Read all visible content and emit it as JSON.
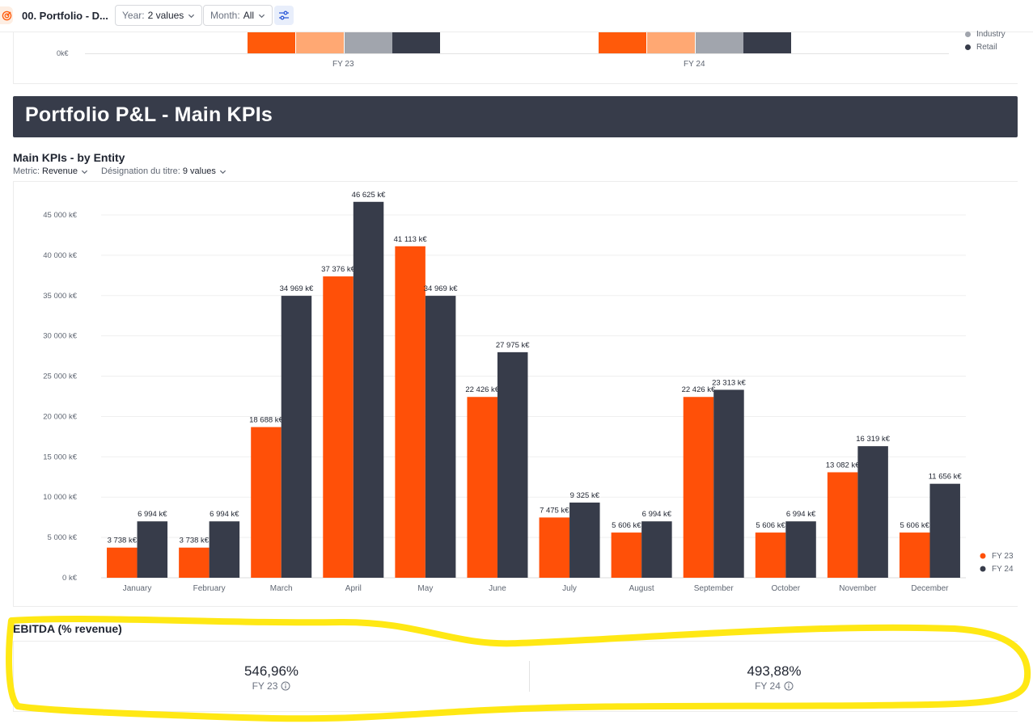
{
  "topbar": {
    "page_name": "00. Portfolio - D...",
    "filters": [
      {
        "label": "Year:",
        "value": "2 values"
      },
      {
        "label": "Month:",
        "value": "All"
      }
    ],
    "settings_icon": "sliders-icon",
    "logo_icon": "target-icon"
  },
  "previous_chart": {
    "y_tick": "0k€",
    "x_labels": [
      "FY 23",
      "FY 24"
    ],
    "legend": [
      {
        "name": "Industry",
        "color": "#a1a5ad"
      },
      {
        "name": "Retail",
        "color": "#373c4a"
      }
    ],
    "segment_colors": [
      "#ff5a0a",
      "#ffa873",
      "#a1a5ad",
      "#373c4a"
    ]
  },
  "banner": {
    "title": "Portfolio P&L - Main KPIs"
  },
  "main_kpis": {
    "title": "Main KPIs - by Entity",
    "filters": [
      {
        "label": "Metric:",
        "value": "Revenue"
      },
      {
        "label": "Désignation du titre:",
        "value": "9 values"
      }
    ]
  },
  "chart_data": {
    "type": "bar",
    "categories": [
      "January",
      "February",
      "March",
      "April",
      "May",
      "June",
      "July",
      "August",
      "September",
      "October",
      "November",
      "December"
    ],
    "series": [
      {
        "name": "FY 23",
        "color": "#ff5008",
        "values": [
          3738,
          3738,
          18688,
          37376,
          41113,
          22426,
          7475,
          5606,
          22426,
          5606,
          13082,
          5606
        ],
        "labels": [
          "3 738 k€",
          "3 738 k€",
          "18 688 k€",
          "37 376 k€",
          "41 113 k€",
          "22 426 k€",
          "7 475 k€",
          "5 606 k€",
          "22 426 k€",
          "5 606 k€",
          "13 082 k€",
          "5 606 k€"
        ]
      },
      {
        "name": "FY 24",
        "color": "#373c4a",
        "values": [
          6994,
          6994,
          34969,
          46625,
          34969,
          27975,
          9325,
          6994,
          23313,
          6994,
          16319,
          11656
        ],
        "labels": [
          "6 994 k€",
          "6 994 k€",
          "34 969 k€",
          "46 625 k€",
          "34 969 k€",
          "27 975 k€",
          "9 325 k€",
          "6 994 k€",
          "23 313 k€",
          "6 994 k€",
          "16 319 k€",
          "11 656 k€"
        ]
      }
    ],
    "y_ticks": [
      {
        "value": 0,
        "label": "0 k€"
      },
      {
        "value": 5000,
        "label": "5 000 k€"
      },
      {
        "value": 10000,
        "label": "10 000 k€"
      },
      {
        "value": 15000,
        "label": "15 000 k€"
      },
      {
        "value": 20000,
        "label": "20 000 k€"
      },
      {
        "value": 25000,
        "label": "25 000 k€"
      },
      {
        "value": 30000,
        "label": "30 000 k€"
      },
      {
        "value": 35000,
        "label": "35 000 k€"
      },
      {
        "value": 40000,
        "label": "40 000 k€"
      },
      {
        "value": 45000,
        "label": "45 000 k€"
      }
    ],
    "ylim": [
      0,
      45000
    ],
    "grid": true,
    "legend_position": "bottom-right"
  },
  "ebitda": {
    "title": "EBITDA (% revenue)",
    "kpis": [
      {
        "value": "546,96%",
        "label": "FY 23",
        "icon": "info-icon"
      },
      {
        "value": "493,88%",
        "label": "FY 24",
        "icon": "info-icon"
      }
    ],
    "highlight_color": "#ffe600"
  }
}
